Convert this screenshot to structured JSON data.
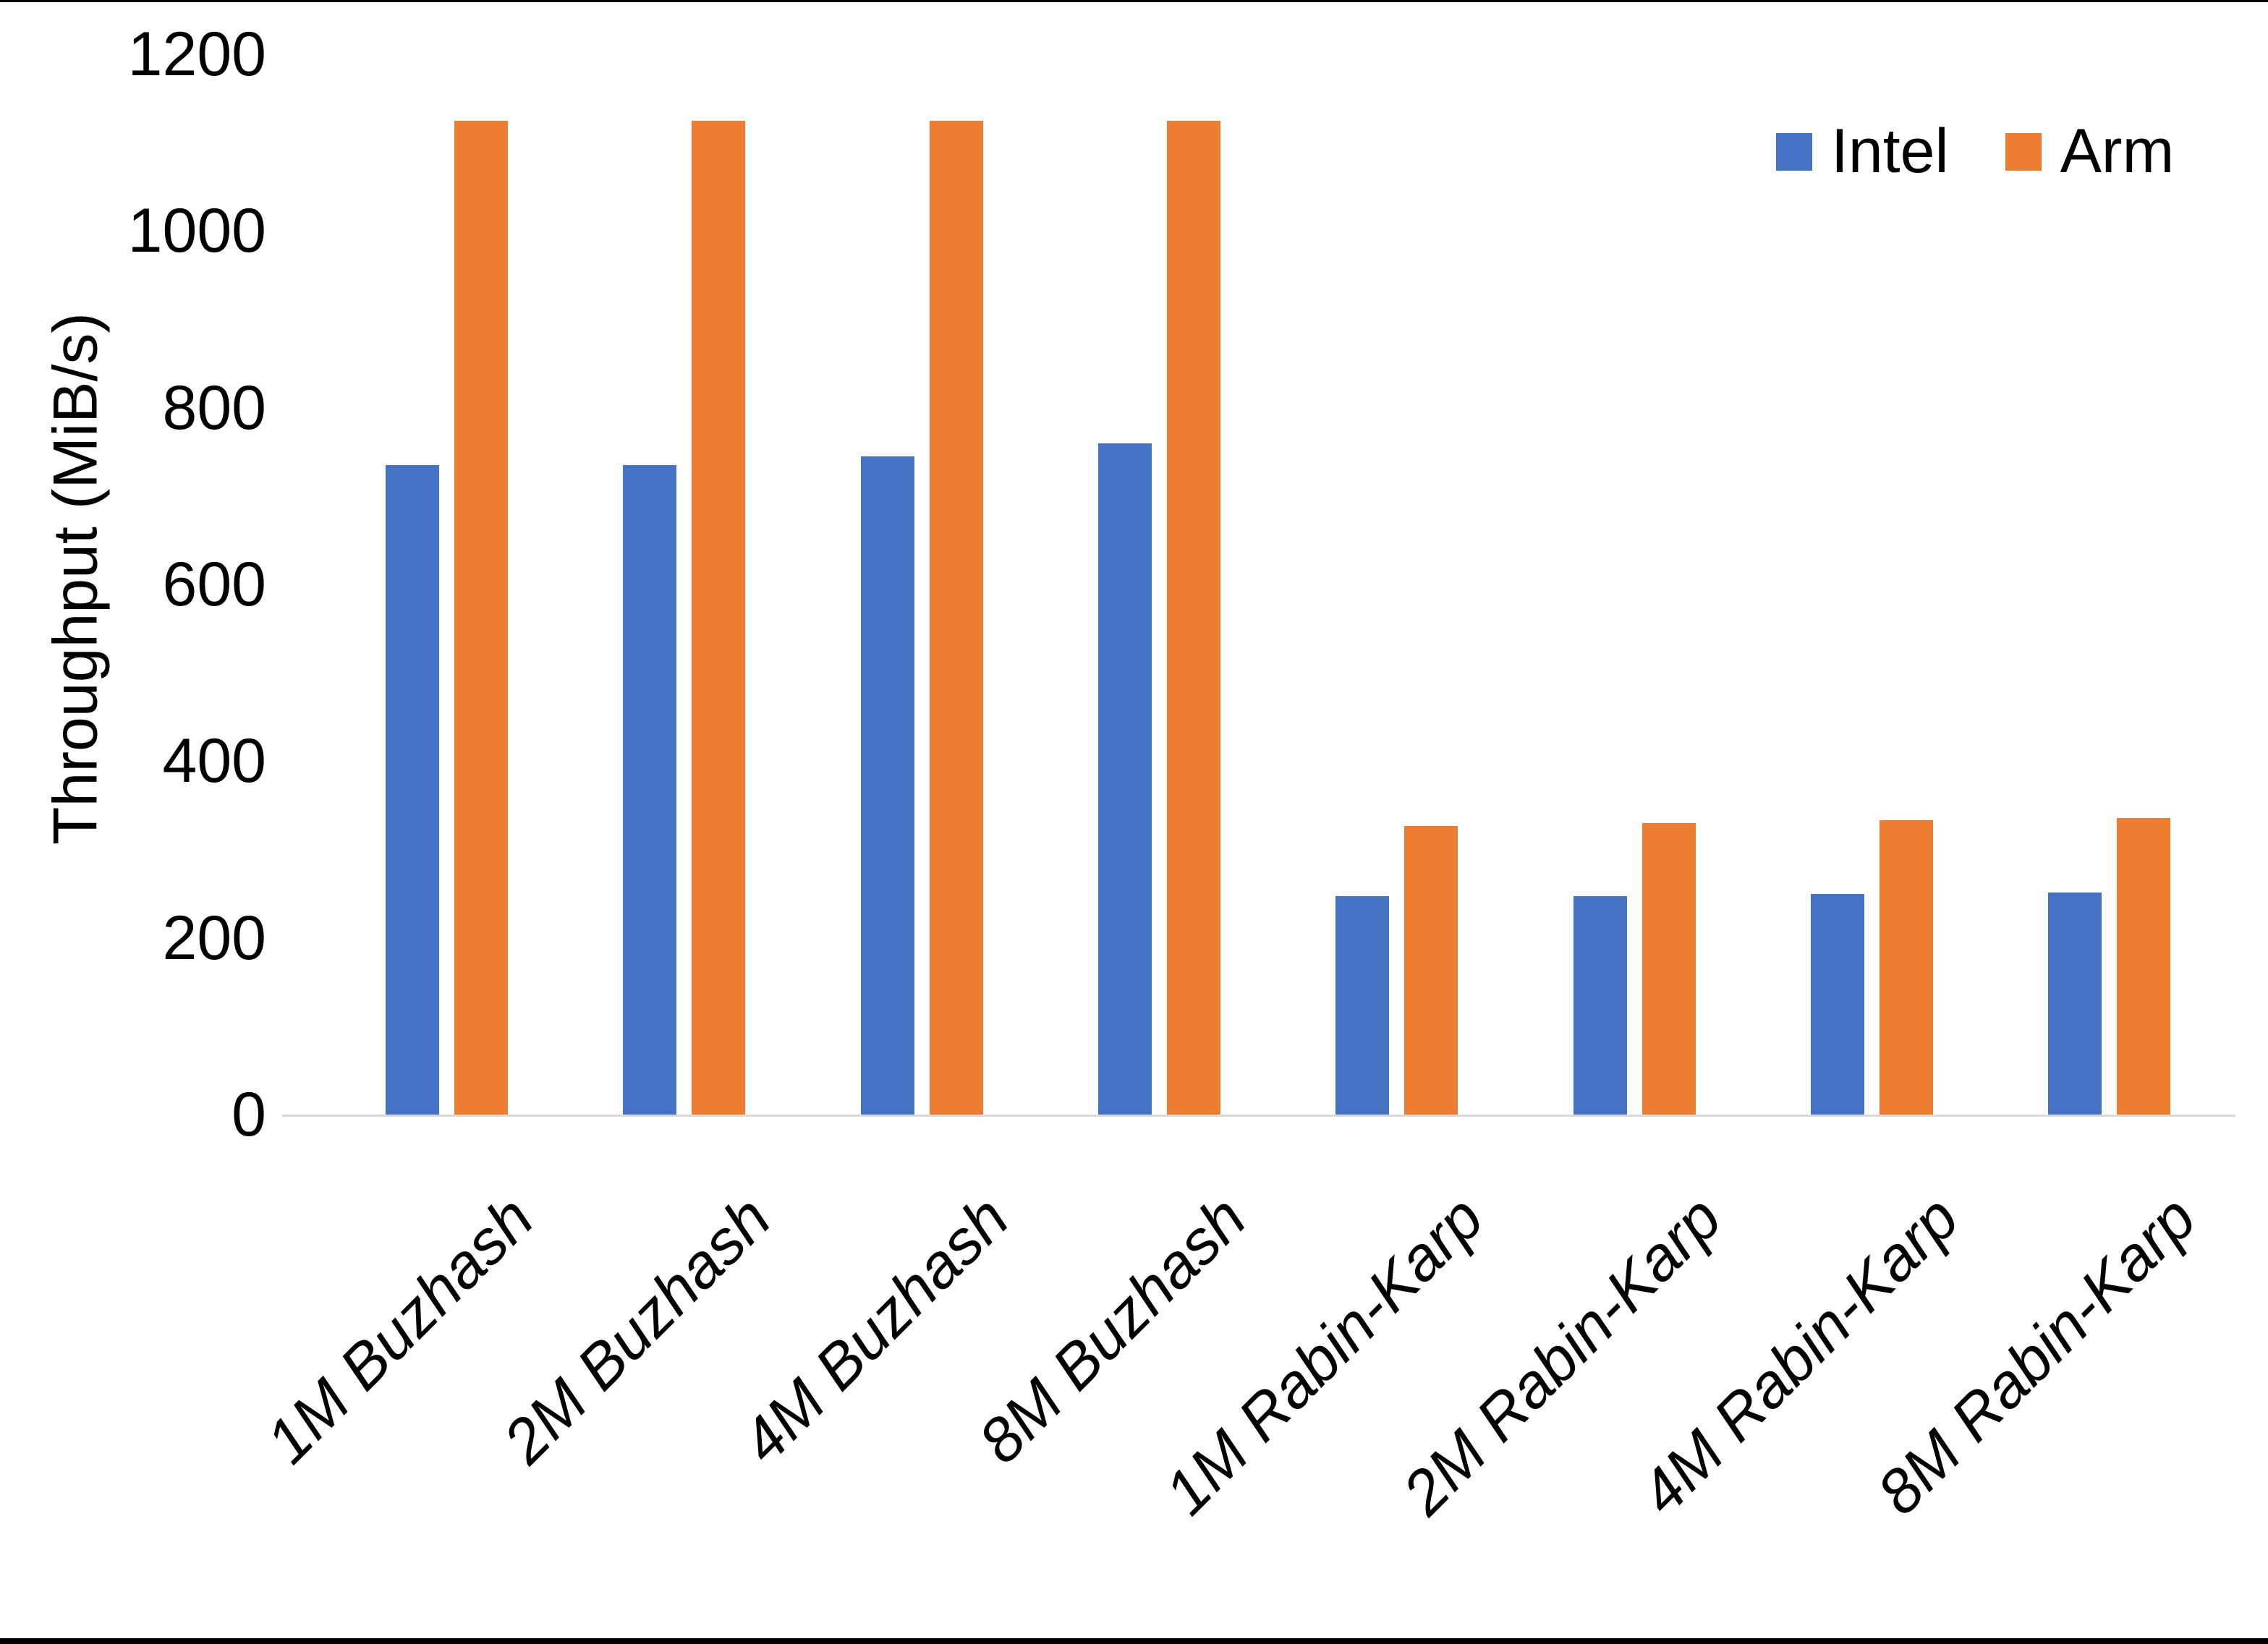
{
  "chart_data": {
    "type": "bar",
    "title": "",
    "xlabel": "",
    "ylabel": "Throughput (MiB/s)",
    "ylim": [
      0,
      1200
    ],
    "yticks": [
      0,
      200,
      400,
      600,
      800,
      1000,
      1200
    ],
    "grid": false,
    "legend_position": "top-right",
    "categories": [
      "1M Buzhash",
      "2M Buzhash",
      "4M Buzhash",
      "8M Buzhash",
      "1M Rabin-Karp",
      "2M Rabin-Karp",
      "4M Rabin-Karp",
      "8M Rabin-Karp"
    ],
    "series": [
      {
        "name": "Intel",
        "color": "#4472C4",
        "values": [
          735,
          735,
          745,
          760,
          247,
          247,
          250,
          251
        ]
      },
      {
        "name": "Arm",
        "color": "#ED7D31",
        "values": [
          1125,
          1125,
          1125,
          1125,
          327,
          330,
          333,
          336
        ]
      }
    ]
  }
}
